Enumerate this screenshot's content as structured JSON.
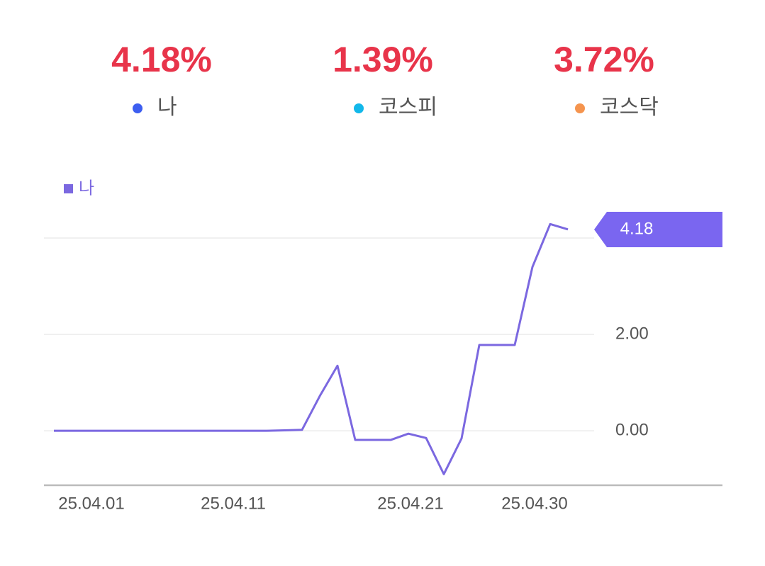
{
  "stats": [
    {
      "value": "4.18%",
      "name": "나",
      "color": "#3d5ef0"
    },
    {
      "value": "1.39%",
      "name": "코스피",
      "color": "#12b8ea"
    },
    {
      "value": "3.72%",
      "name": "코스닥",
      "color": "#f5944e"
    }
  ],
  "chart_data": {
    "type": "line",
    "categories": [
      null,
      null,
      "25.04.01",
      null,
      null,
      null,
      null,
      null,
      null,
      null,
      "25.04.11",
      null,
      null,
      null,
      null,
      null,
      null,
      null,
      null,
      null,
      "25.04.21",
      null,
      null,
      null,
      null,
      null,
      null,
      "25.04.30",
      null,
      null
    ],
    "series": [
      {
        "name": "나",
        "color": "#7b68e0",
        "values": [
          0,
          0,
          0,
          0,
          0,
          0,
          0,
          0,
          0,
          0,
          0,
          0,
          0,
          0.01,
          0.02,
          0.72,
          1.35,
          -0.19,
          -0.19,
          -0.19,
          -0.06,
          -0.15,
          -0.9,
          -0.16,
          1.78,
          1.78,
          1.78,
          3.4,
          4.29,
          4.18
        ]
      }
    ],
    "ylim": [
      -1.13,
      4.5
    ],
    "yticks": [
      {
        "value": 0,
        "label": "0.00"
      },
      {
        "value": 2,
        "label": "2.00"
      },
      {
        "value": 4,
        "label": null
      }
    ],
    "grid": true,
    "tag_color": "#7a66f0"
  }
}
